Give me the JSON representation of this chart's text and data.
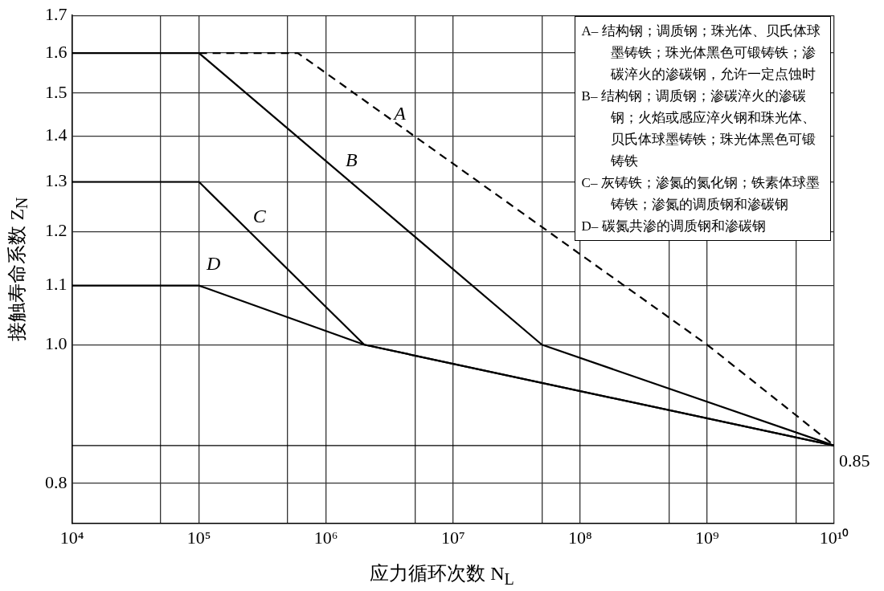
{
  "chart_data": {
    "type": "line",
    "xlabel": "应力循环次数 N$_{L}$",
    "ylabel": "接触寿命系数 Z$_{N}$",
    "log": "xy",
    "xlim": [
      10000,
      10000000000
    ],
    "ylim": [
      0.75,
      1.7
    ],
    "xticks": [
      {
        "value": 10000,
        "label": "10⁴"
      },
      {
        "value": 50000,
        "label": null
      },
      {
        "value": 100000,
        "label": "10⁵"
      },
      {
        "value": 500000,
        "label": null
      },
      {
        "value": 1000000,
        "label": "10⁶"
      },
      {
        "value": 5000000,
        "label": null
      },
      {
        "value": 10000000,
        "label": "10⁷"
      },
      {
        "value": 50000000,
        "label": null
      },
      {
        "value": 100000000,
        "label": "10⁸"
      },
      {
        "value": 500000000,
        "label": null
      },
      {
        "value": 1000000000,
        "label": "10⁹"
      },
      {
        "value": 5000000000,
        "label": null
      },
      {
        "value": 10000000000,
        "label": "10¹⁰"
      }
    ],
    "yticks": [
      0.8,
      {
        "value": 1.0,
        "label": "1.0"
      },
      1.1,
      1.2,
      1.3,
      1.4,
      1.5,
      1.6,
      1.7
    ],
    "grid": true,
    "legend": false,
    "marker": "none",
    "series": [
      {
        "name": "A",
        "color": "#000000",
        "line_style": "dashed",
        "x": [
          100000,
          600000,
          1000000000,
          10000000000
        ],
        "values": [
          1.6,
          1.6,
          1.0,
          0.85
        ]
      },
      {
        "name": "B",
        "color": "#000000",
        "line_style": "solid",
        "x": [
          10000,
          100000,
          50000000,
          10000000000
        ],
        "values": [
          1.6,
          1.6,
          1.0,
          0.85
        ]
      },
      {
        "name": "C",
        "color": "#000000",
        "line_style": "solid",
        "x": [
          10000,
          100000,
          2000000,
          10000000000
        ],
        "values": [
          1.3,
          1.3,
          1.0,
          0.85
        ]
      },
      {
        "name": "D",
        "color": "#000000",
        "line_style": "solid",
        "x": [
          10000,
          100000,
          2000000,
          10000000000
        ],
        "values": [
          1.1,
          1.1,
          1.0,
          0.85
        ]
      }
    ],
    "ref_lines": [
      {
        "axis": "y",
        "value": 0.85,
        "label": "0.85",
        "color": "#000000"
      }
    ],
    "annotations": [
      "A– 结构钢；调质钢；珠光体、贝氏体球墨铸铁；珠光体黑色可锻铸铁；渗碳淬火的渗碳钢，允许一定点蚀时",
      "B– 结构钢；调质钢；渗碳淬火的渗碳钢；火焰或感应淬火钢和珠光体、贝氏体球墨铸铁；珠光体黑色可锻铸铁",
      "C– 灰铸铁；渗氮的氮化钢；铁素体球墨铸铁；渗氮的调质钢和渗碳钢",
      "D– 碳氮共渗的调质钢和渗碳钢"
    ]
  }
}
